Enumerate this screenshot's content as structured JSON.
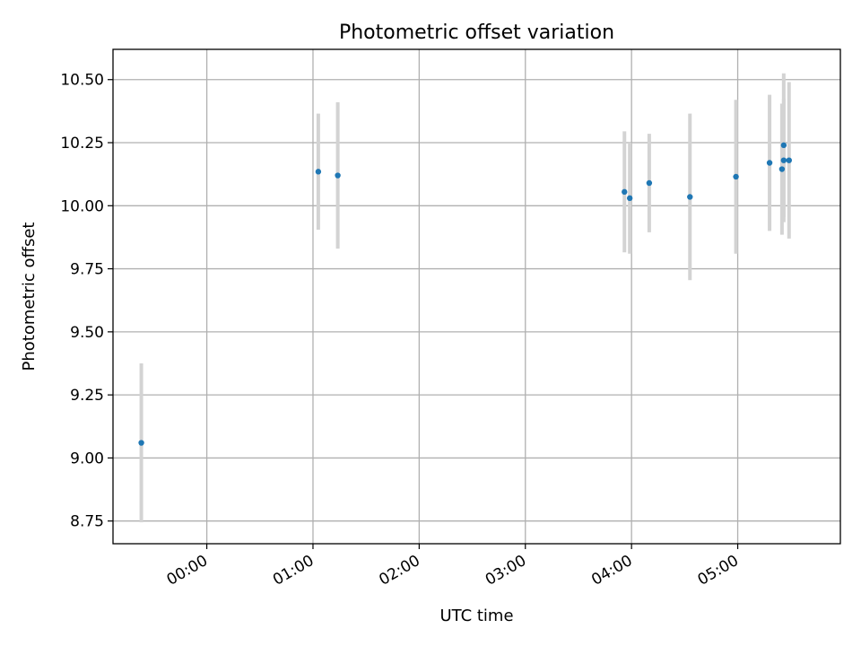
{
  "chart_data": {
    "type": "scatter",
    "title": "Photometric offset variation",
    "xlabel": "UTC time",
    "ylabel": "Photometric offset",
    "x_axis_kind": "time",
    "xlim": [
      "23:07",
      "05:58"
    ],
    "ylim": [
      8.66,
      10.62
    ],
    "grid": true,
    "legend": "none",
    "x_ticks": [
      "00:00",
      "01:00",
      "02:00",
      "03:00",
      "04:00",
      "05:00"
    ],
    "y_ticks": [
      "8.75",
      "9.00",
      "9.25",
      "9.50",
      "9.75",
      "10.00",
      "10.25",
      "10.50"
    ],
    "points": [
      {
        "x": "23:23",
        "y": 9.06,
        "err": 0.315
      },
      {
        "x": "01:03",
        "y": 10.135,
        "err": 0.23
      },
      {
        "x": "01:14",
        "y": 10.12,
        "err": 0.29
      },
      {
        "x": "03:56",
        "y": 10.055,
        "err": 0.24
      },
      {
        "x": "03:59",
        "y": 10.03,
        "err": 0.22
      },
      {
        "x": "04:10",
        "y": 10.09,
        "err": 0.195
      },
      {
        "x": "04:33",
        "y": 10.035,
        "err": 0.33
      },
      {
        "x": "04:59",
        "y": 10.115,
        "err": 0.305
      },
      {
        "x": "05:18",
        "y": 10.17,
        "err": 0.27
      },
      {
        "x": "05:25",
        "y": 10.145,
        "err": 0.26
      },
      {
        "x": "05:26",
        "y": 10.24,
        "err": 0.285
      },
      {
        "x": "05:26",
        "y": 10.18,
        "err": 0.245
      },
      {
        "x": "05:29",
        "y": 10.18,
        "err": 0.31
      }
    ],
    "colors": {
      "point": "#1f77b4",
      "errorbar": "#d3d3d3",
      "grid": "#b0b0b0",
      "axes": "#000000"
    }
  }
}
